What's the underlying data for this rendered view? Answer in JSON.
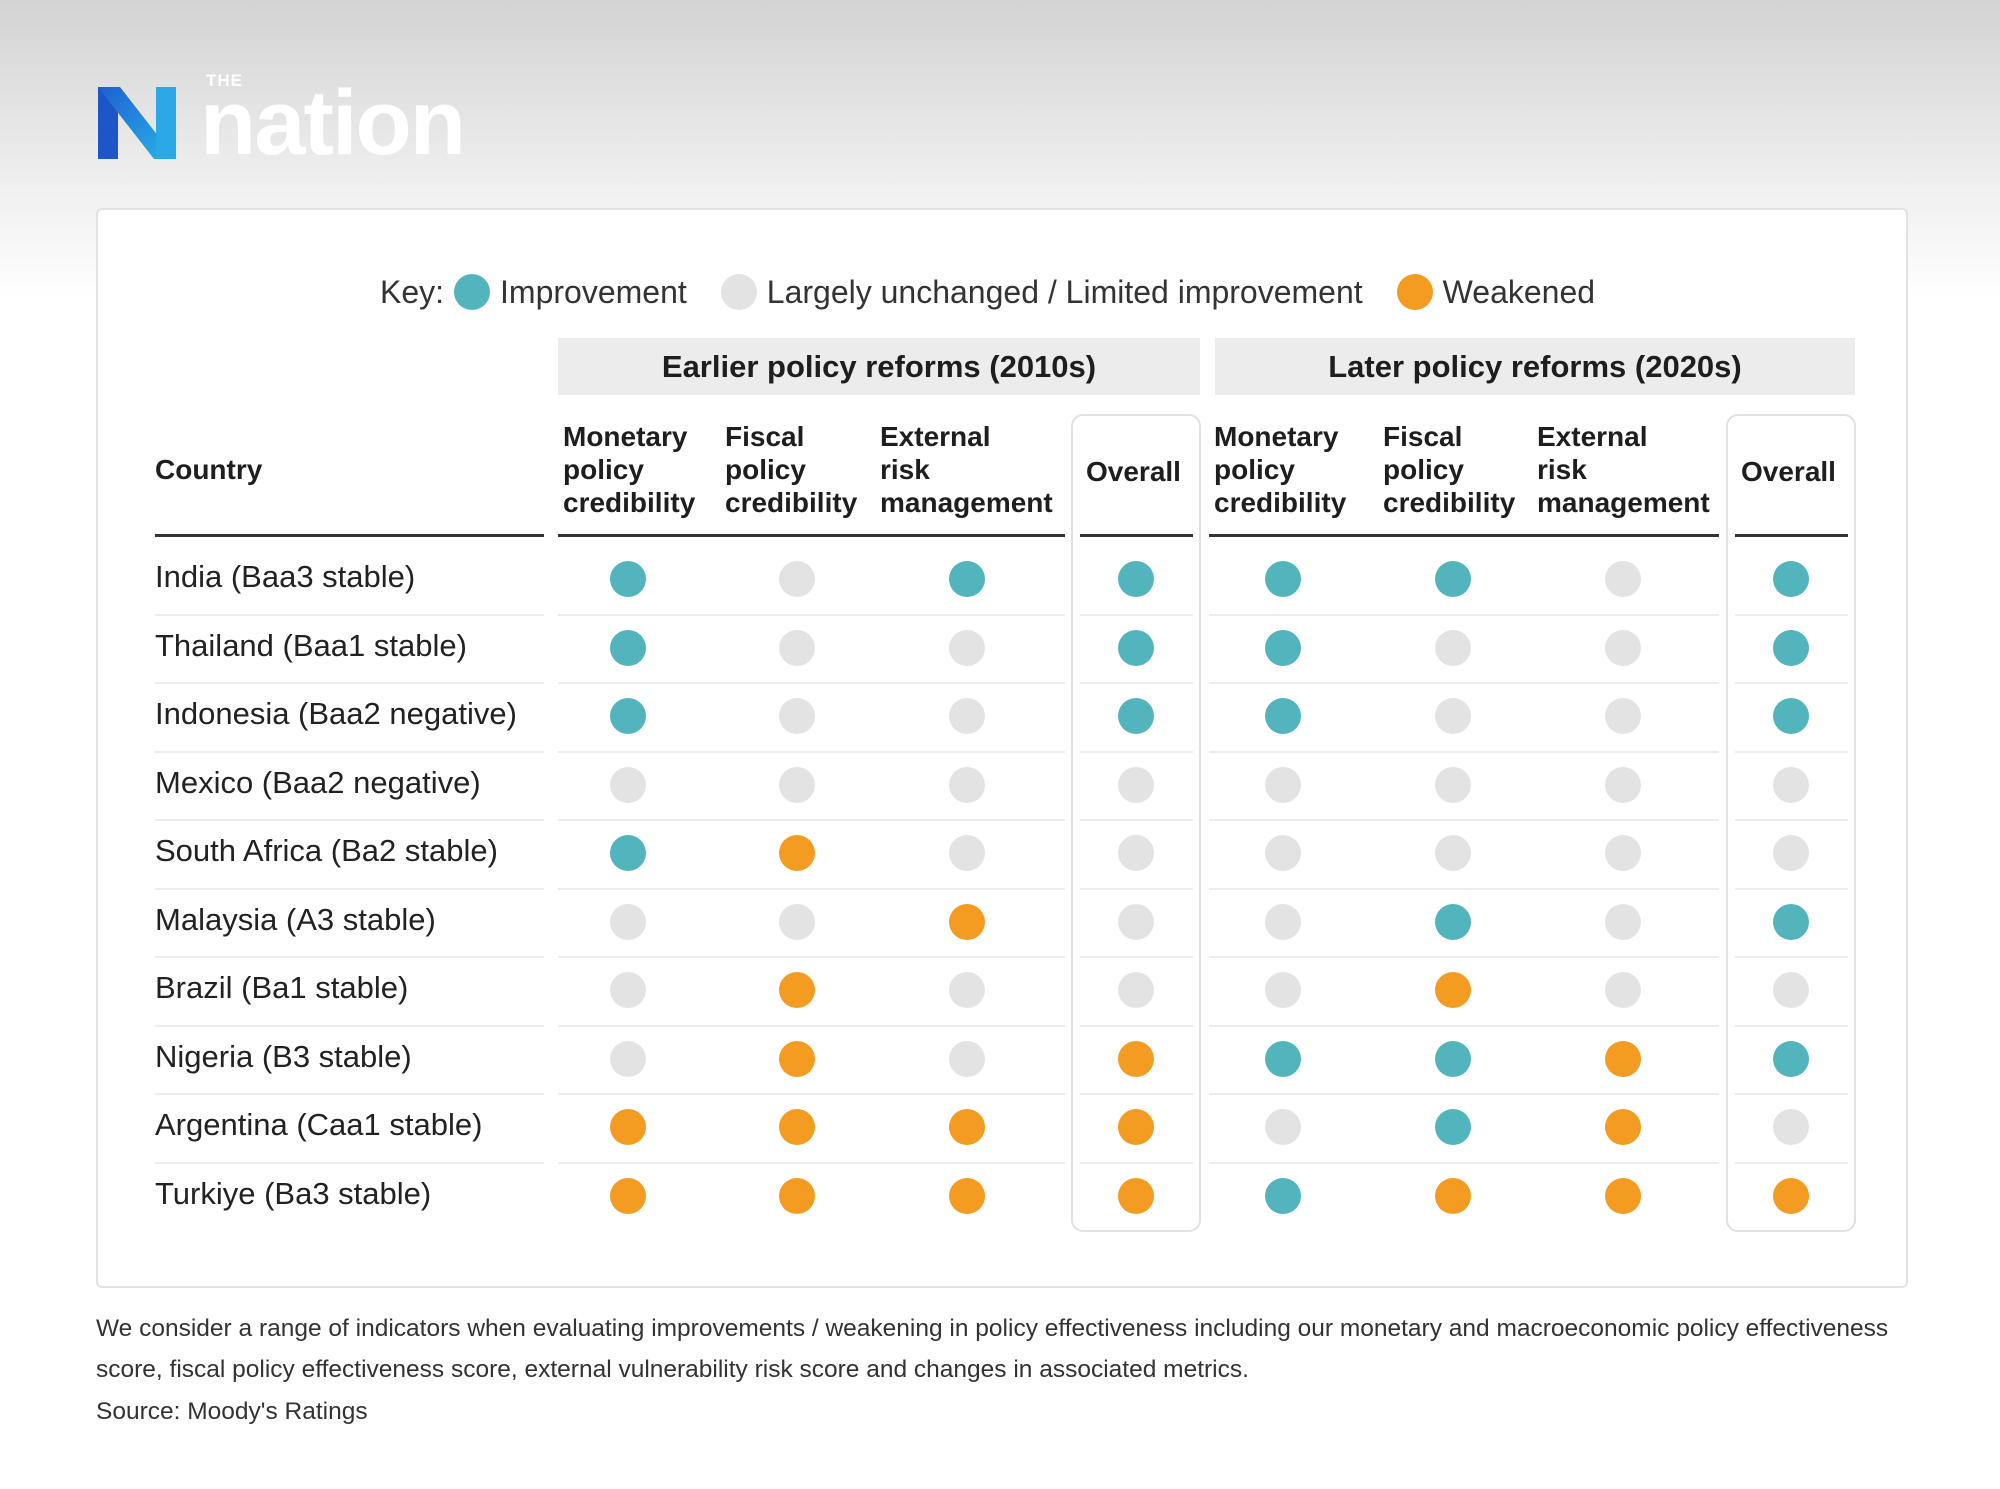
{
  "logo": {
    "small": "THE",
    "big": "nation"
  },
  "key": {
    "label": "Key:",
    "items": [
      {
        "label": "Improvement",
        "color": "#52b4bc"
      },
      {
        "label": "Largely unchanged / Limited improvement",
        "color": "#e3e3e3"
      },
      {
        "label": "Weakened",
        "color": "#f39c21"
      }
    ]
  },
  "chart_data": {
    "type": "table",
    "row_header": "Country",
    "groups": [
      {
        "title": "Earlier policy reforms (2010s)",
        "columns": [
          "Monetary policy credibility",
          "Fiscal policy credibility",
          "External risk management",
          "Overall"
        ]
      },
      {
        "title": "Later policy reforms (2020s)",
        "columns": [
          "Monetary policy credibility",
          "Fiscal policy credibility",
          "External risk management",
          "Overall"
        ]
      }
    ],
    "column_headers": [
      [
        "Monetary",
        "policy",
        "credibility"
      ],
      [
        "Fiscal",
        "policy",
        "credibility"
      ],
      [
        "External",
        "risk",
        "management"
      ],
      [
        "Overall"
      ]
    ],
    "legend": {
      "improvement": "Improvement",
      "unchanged": "Largely unchanged / Limited improvement",
      "weakened": "Weakened"
    },
    "rows": [
      {
        "country": "India (Baa3 stable)",
        "earlier": [
          "improvement",
          "unchanged",
          "improvement",
          "improvement"
        ],
        "later": [
          "improvement",
          "improvement",
          "unchanged",
          "improvement"
        ]
      },
      {
        "country": "Thailand (Baa1 stable)",
        "earlier": [
          "improvement",
          "unchanged",
          "unchanged",
          "improvement"
        ],
        "later": [
          "improvement",
          "unchanged",
          "unchanged",
          "improvement"
        ]
      },
      {
        "country": "Indonesia (Baa2 negative)",
        "earlier": [
          "improvement",
          "unchanged",
          "unchanged",
          "improvement"
        ],
        "later": [
          "improvement",
          "unchanged",
          "unchanged",
          "improvement"
        ]
      },
      {
        "country": "Mexico (Baa2 negative)",
        "earlier": [
          "unchanged",
          "unchanged",
          "unchanged",
          "unchanged"
        ],
        "later": [
          "unchanged",
          "unchanged",
          "unchanged",
          "unchanged"
        ]
      },
      {
        "country": "South Africa (Ba2 stable)",
        "earlier": [
          "improvement",
          "weakened",
          "unchanged",
          "unchanged"
        ],
        "later": [
          "unchanged",
          "unchanged",
          "unchanged",
          "unchanged"
        ]
      },
      {
        "country": "Malaysia (A3 stable)",
        "earlier": [
          "unchanged",
          "unchanged",
          "weakened",
          "unchanged"
        ],
        "later": [
          "unchanged",
          "improvement",
          "unchanged",
          "improvement"
        ]
      },
      {
        "country": "Brazil (Ba1 stable)",
        "earlier": [
          "unchanged",
          "weakened",
          "unchanged",
          "unchanged"
        ],
        "later": [
          "unchanged",
          "weakened",
          "unchanged",
          "unchanged"
        ]
      },
      {
        "country": "Nigeria (B3 stable)",
        "earlier": [
          "unchanged",
          "weakened",
          "unchanged",
          "weakened"
        ],
        "later": [
          "improvement",
          "improvement",
          "weakened",
          "improvement"
        ]
      },
      {
        "country": "Argentina (Caa1 stable)",
        "earlier": [
          "weakened",
          "weakened",
          "weakened",
          "weakened"
        ],
        "later": [
          "unchanged",
          "improvement",
          "weakened",
          "unchanged"
        ]
      },
      {
        "country": "Turkiye (Ba3 stable)",
        "earlier": [
          "weakened",
          "weakened",
          "weakened",
          "weakened"
        ],
        "later": [
          "improvement",
          "weakened",
          "weakened",
          "weakened"
        ]
      }
    ]
  },
  "footnote": "We consider a range of indicators when evaluating improvements / weakening in policy effectiveness including our monetary and macroeconomic policy effectiveness score, fiscal policy effectiveness score, external vulnerability risk score and changes in associated metrics.",
  "source": "Source: Moody's Ratings"
}
